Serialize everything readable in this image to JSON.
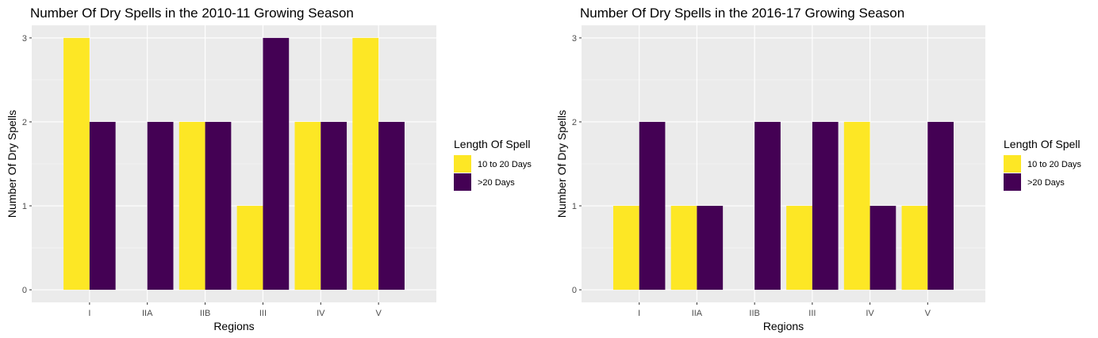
{
  "chart_data": [
    {
      "type": "bar",
      "title": "Number Of Dry Spells in the 2010-11 Growing Season",
      "xlabel": "Regions",
      "ylabel": "Number Of Dry Spells",
      "categories": [
        "I",
        "IIA",
        "IIB",
        "III",
        "IV",
        "V"
      ],
      "ylim": [
        0,
        3
      ],
      "yticks": [
        0,
        1,
        2,
        3
      ],
      "grid": true,
      "legend_title": "Length Of Spell",
      "legend_position": "right",
      "series": [
        {
          "name": "10 to 20 Days",
          "color": "#FDE725",
          "values": [
            3,
            0,
            2,
            1,
            2,
            3
          ]
        },
        {
          "name": ">20 Days",
          "color": "#440154",
          "values": [
            2,
            2,
            2,
            3,
            2,
            2
          ]
        }
      ]
    },
    {
      "type": "bar",
      "title": "Number Of Dry Spells in the 2016-17 Growing Season",
      "xlabel": "Regions",
      "ylabel": "Number Of Dry Spells",
      "categories": [
        "I",
        "IIA",
        "IIB",
        "III",
        "IV",
        "V"
      ],
      "ylim": [
        0,
        3
      ],
      "yticks": [
        0,
        1,
        2,
        3
      ],
      "grid": true,
      "legend_title": "Length Of Spell",
      "legend_position": "right",
      "series": [
        {
          "name": "10 to 20 Days",
          "color": "#FDE725",
          "values": [
            1,
            1,
            0,
            1,
            2,
            1
          ]
        },
        {
          "name": ">20 Days",
          "color": "#440154",
          "values": [
            2,
            1,
            2,
            2,
            1,
            2
          ]
        }
      ]
    }
  ]
}
